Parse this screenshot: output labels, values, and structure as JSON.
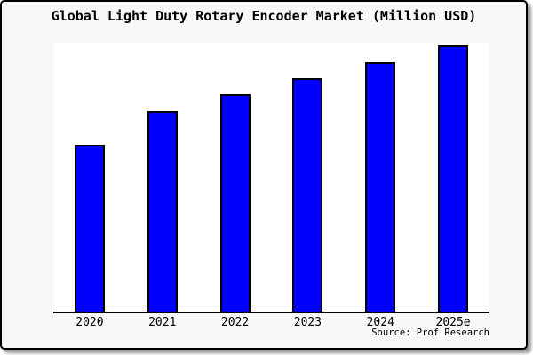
{
  "window": {
    "figure_background": "#f8f8f8",
    "plot_background": "#ffffff",
    "frame_border_color": "#000000",
    "shadow_color": "#9a9a9a"
  },
  "chart_data": {
    "type": "bar",
    "title": "Global Light Duty Rotary Encoder Market (Million USD)",
    "categories": [
      "2020",
      "2021",
      "2022",
      "2023",
      "2024",
      "2025e"
    ],
    "values": [
      62.8,
      75.2,
      81.7,
      87.7,
      93.7,
      100
    ],
    "values_note": "No y-axis scale is shown in the image; values are bar heights normalized so that 2025e = 100",
    "xlabel": "",
    "ylabel": "",
    "y_axis_visible": false,
    "grid": false,
    "legend": "none",
    "ylim": [
      0,
      100
    ],
    "bar_color": "#0000ff",
    "bar_border_color": "#000000",
    "axis_line_color": "#000000",
    "source": "Source: Prof Research"
  }
}
